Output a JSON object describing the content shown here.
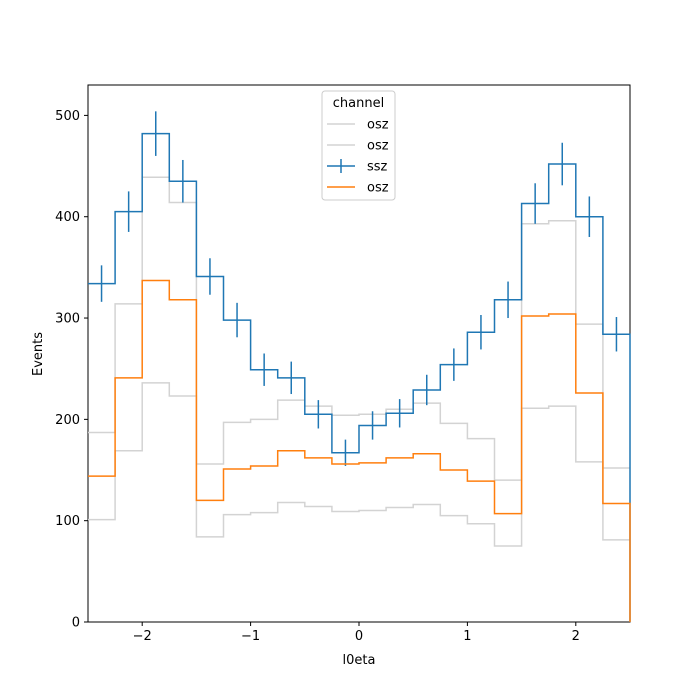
{
  "chart_data": {
    "type": "step-histogram",
    "xlabel": "l0eta",
    "ylabel": "Events",
    "xlim": [
      -2.5,
      2.5
    ],
    "ylim": [
      0,
      530
    ],
    "xticks": [
      -2,
      -1,
      0,
      1,
      2
    ],
    "yticks": [
      0,
      100,
      200,
      300,
      400,
      500
    ],
    "bin_edges": [
      -2.5,
      -2.25,
      -2.0,
      -1.75,
      -1.5,
      -1.25,
      -1.0,
      -0.75,
      -0.5,
      -0.25,
      0.0,
      0.25,
      0.5,
      0.75,
      1.0,
      1.25,
      1.5,
      1.75,
      2.0,
      2.25,
      2.5
    ],
    "legend": {
      "title": "channel",
      "placement": "upper center"
    },
    "series": [
      {
        "name": "osz",
        "style": "band-upper",
        "color": "#d3d3d3",
        "values": [
          187,
          314,
          439,
          414,
          156,
          197,
          200,
          219,
          213,
          204,
          205,
          210,
          216,
          196,
          181,
          140,
          393,
          396,
          294,
          152
        ]
      },
      {
        "name": "osz",
        "style": "band-lower",
        "color": "#d3d3d3",
        "values": [
          101,
          169,
          236,
          223,
          84,
          106,
          108,
          118,
          114,
          109,
          110,
          113,
          116,
          105,
          97,
          75,
          211,
          213,
          158,
          81
        ]
      },
      {
        "name": "ssz",
        "style": "step-errorbar",
        "color": "#1f77b4",
        "values": [
          334,
          405,
          482,
          435,
          341,
          298,
          249,
          241,
          205,
          167,
          194,
          206,
          229,
          254,
          286,
          318,
          413,
          452,
          400,
          284
        ],
        "errors": [
          18,
          20,
          22,
          21,
          18,
          17,
          16,
          16,
          14,
          13,
          14,
          14,
          15,
          16,
          17,
          18,
          20,
          21,
          20,
          17
        ]
      },
      {
        "name": "osz",
        "style": "step",
        "color": "#ff7f0e",
        "values": [
          144,
          241,
          337,
          318,
          120,
          151,
          154,
          169,
          162,
          156,
          157,
          162,
          166,
          150,
          139,
          107,
          302,
          304,
          226,
          117
        ]
      }
    ]
  }
}
